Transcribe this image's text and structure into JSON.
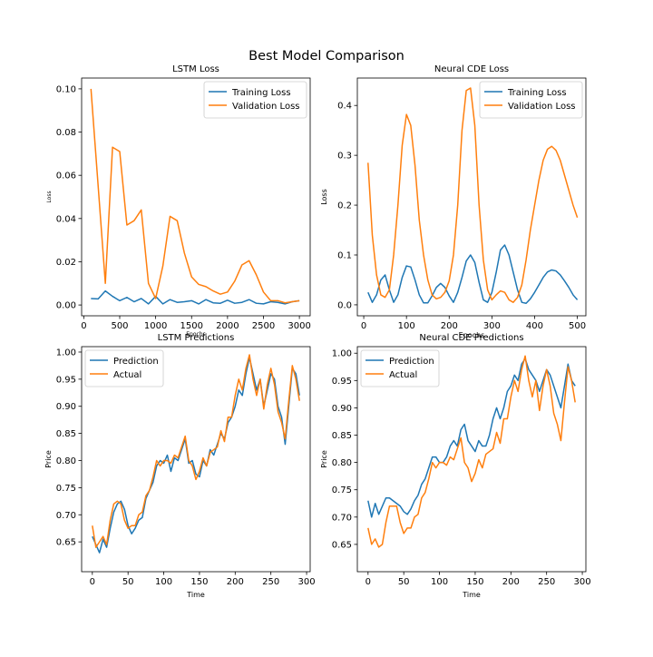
{
  "figure": {
    "title": "Best Model Comparison"
  },
  "chart_data": [
    {
      "type": "line",
      "title": "LSTM Loss",
      "xlabel": "Epochs",
      "ylabel": "Loss",
      "xlim": [
        -30,
        3150
      ],
      "ylim": [
        -0.005,
        0.105
      ],
      "xticks": [
        0,
        500,
        1000,
        1500,
        2000,
        2500,
        3000
      ],
      "yticks": [
        0.0,
        0.02,
        0.04,
        0.06,
        0.08,
        0.1
      ],
      "ytick_labels": [
        "0.00",
        "0.02",
        "0.04",
        "0.06",
        "0.08",
        "0.10"
      ],
      "legend": "top-right",
      "x": [
        100,
        200,
        300,
        400,
        500,
        600,
        700,
        800,
        900,
        1000,
        1100,
        1200,
        1300,
        1400,
        1500,
        1600,
        1700,
        1800,
        1900,
        2000,
        2100,
        2200,
        2300,
        2400,
        2500,
        2600,
        2700,
        2800,
        2900,
        3000
      ],
      "series": [
        {
          "name": "Training Loss",
          "color": "#1f77b4",
          "values": [
            0.003,
            0.0028,
            0.0065,
            0.004,
            0.002,
            0.0035,
            0.0015,
            0.003,
            0.0005,
            0.004,
            0.0005,
            0.0025,
            0.0012,
            0.0015,
            0.002,
            0.0005,
            0.0025,
            0.001,
            0.0008,
            0.0022,
            0.0008,
            0.0012,
            0.0025,
            0.0008,
            0.0005,
            0.0015,
            0.0012,
            0.0005,
            0.0015,
            0.002
          ]
        },
        {
          "name": "Validation Loss",
          "color": "#ff7f0e",
          "values": [
            0.1,
            0.055,
            0.01,
            0.073,
            0.071,
            0.037,
            0.039,
            0.044,
            0.01,
            0.003,
            0.018,
            0.041,
            0.039,
            0.024,
            0.013,
            0.0095,
            0.0085,
            0.0065,
            0.005,
            0.006,
            0.011,
            0.0185,
            0.0205,
            0.014,
            0.006,
            0.002,
            0.002,
            0.001,
            0.0015,
            0.002
          ]
        }
      ]
    },
    {
      "type": "line",
      "title": "Neural CDE Loss",
      "xlabel": "Epochs",
      "ylabel": "Loss",
      "xlim": [
        -15,
        520
      ],
      "ylim": [
        -0.022,
        0.455
      ],
      "xticks": [
        0,
        100,
        200,
        300,
        400,
        500
      ],
      "yticks": [
        0.0,
        0.1,
        0.2,
        0.3,
        0.4
      ],
      "ytick_labels": [
        "0.0",
        "0.1",
        "0.2",
        "0.3",
        "0.4"
      ],
      "legend": "top-right",
      "x": [
        10,
        20,
        30,
        40,
        50,
        60,
        70,
        80,
        90,
        100,
        110,
        120,
        130,
        140,
        150,
        160,
        170,
        180,
        190,
        200,
        210,
        220,
        230,
        240,
        250,
        260,
        270,
        280,
        290,
        300,
        310,
        320,
        330,
        340,
        350,
        360,
        370,
        380,
        390,
        400,
        410,
        420,
        430,
        440,
        450,
        460,
        470,
        480,
        490,
        500
      ],
      "series": [
        {
          "name": "Training Loss",
          "color": "#1f77b4",
          "values": [
            0.025,
            0.005,
            0.02,
            0.05,
            0.06,
            0.03,
            0.005,
            0.02,
            0.055,
            0.078,
            0.076,
            0.05,
            0.02,
            0.004,
            0.004,
            0.018,
            0.035,
            0.043,
            0.035,
            0.018,
            0.005,
            0.025,
            0.055,
            0.088,
            0.1,
            0.085,
            0.045,
            0.01,
            0.005,
            0.025,
            0.065,
            0.11,
            0.12,
            0.1,
            0.065,
            0.03,
            0.005,
            0.003,
            0.012,
            0.025,
            0.04,
            0.055,
            0.066,
            0.07,
            0.068,
            0.06,
            0.048,
            0.035,
            0.02,
            0.01
          ]
        },
        {
          "name": "Validation Loss",
          "color": "#ff7f0e",
          "values": [
            0.285,
            0.14,
            0.06,
            0.02,
            0.015,
            0.03,
            0.1,
            0.2,
            0.32,
            0.382,
            0.36,
            0.28,
            0.17,
            0.1,
            0.05,
            0.02,
            0.012,
            0.015,
            0.025,
            0.048,
            0.1,
            0.2,
            0.35,
            0.43,
            0.435,
            0.36,
            0.2,
            0.09,
            0.03,
            0.01,
            0.02,
            0.028,
            0.025,
            0.01,
            0.005,
            0.015,
            0.04,
            0.09,
            0.15,
            0.2,
            0.25,
            0.29,
            0.312,
            0.318,
            0.31,
            0.29,
            0.26,
            0.23,
            0.2,
            0.175
          ]
        }
      ]
    },
    {
      "type": "line",
      "title": "LSTM Predictions",
      "xlabel": "Time",
      "ylabel": "Price",
      "xlim": [
        -15,
        305
      ],
      "ylim": [
        0.595,
        1.01
      ],
      "xticks": [
        0,
        50,
        100,
        150,
        200,
        250,
        300
      ],
      "yticks": [
        0.65,
        0.7,
        0.75,
        0.8,
        0.85,
        0.9,
        0.95,
        1.0
      ],
      "ytick_labels": [
        "0.65",
        "0.70",
        "0.75",
        "0.80",
        "0.85",
        "0.90",
        "0.95",
        "1.00"
      ],
      "legend": "top-left",
      "x": [
        0,
        5,
        10,
        15,
        20,
        25,
        30,
        35,
        40,
        45,
        50,
        55,
        60,
        65,
        70,
        75,
        80,
        85,
        90,
        95,
        100,
        105,
        110,
        115,
        120,
        125,
        130,
        135,
        140,
        145,
        150,
        155,
        160,
        165,
        170,
        175,
        180,
        185,
        190,
        195,
        200,
        205,
        210,
        215,
        220,
        225,
        230,
        235,
        240,
        245,
        250,
        255,
        260,
        265,
        270,
        275,
        280,
        285,
        290
      ],
      "series": [
        {
          "name": "Prediction",
          "color": "#1f77b4",
          "values": [
            0.66,
            0.645,
            0.63,
            0.655,
            0.64,
            0.675,
            0.705,
            0.72,
            0.725,
            0.71,
            0.68,
            0.665,
            0.675,
            0.69,
            0.695,
            0.73,
            0.745,
            0.76,
            0.79,
            0.8,
            0.795,
            0.81,
            0.78,
            0.805,
            0.8,
            0.82,
            0.84,
            0.795,
            0.8,
            0.775,
            0.77,
            0.8,
            0.79,
            0.82,
            0.81,
            0.83,
            0.85,
            0.84,
            0.87,
            0.88,
            0.9,
            0.93,
            0.92,
            0.96,
            0.99,
            0.96,
            0.93,
            0.95,
            0.9,
            0.93,
            0.96,
            0.95,
            0.9,
            0.88,
            0.83,
            0.9,
            0.97,
            0.96,
            0.92
          ]
        },
        {
          "name": "Actual",
          "color": "#ff7f0e",
          "values": [
            0.68,
            0.64,
            0.65,
            0.66,
            0.645,
            0.69,
            0.72,
            0.725,
            0.72,
            0.69,
            0.675,
            0.68,
            0.68,
            0.7,
            0.705,
            0.735,
            0.745,
            0.77,
            0.8,
            0.79,
            0.8,
            0.8,
            0.795,
            0.81,
            0.805,
            0.825,
            0.845,
            0.8,
            0.79,
            0.765,
            0.78,
            0.805,
            0.79,
            0.815,
            0.82,
            0.825,
            0.855,
            0.835,
            0.88,
            0.88,
            0.92,
            0.95,
            0.93,
            0.97,
            0.995,
            0.95,
            0.92,
            0.95,
            0.895,
            0.94,
            0.97,
            0.94,
            0.89,
            0.87,
            0.84,
            0.91,
            0.975,
            0.95,
            0.91
          ]
        }
      ]
    },
    {
      "type": "line",
      "title": "Neural CDE Predictions",
      "xlabel": "Time",
      "ylabel": "Price",
      "xlim": [
        -15,
        305
      ],
      "ylim": [
        0.6,
        1.012
      ],
      "xticks": [
        0,
        50,
        100,
        150,
        200,
        250,
        300
      ],
      "yticks": [
        0.65,
        0.7,
        0.75,
        0.8,
        0.85,
        0.9,
        0.95,
        1.0
      ],
      "ytick_labels": [
        "0.65",
        "0.70",
        "0.75",
        "0.80",
        "0.85",
        "0.90",
        "0.95",
        "1.00"
      ],
      "legend": "top-left",
      "x": [
        0,
        5,
        10,
        15,
        20,
        25,
        30,
        35,
        40,
        45,
        50,
        55,
        60,
        65,
        70,
        75,
        80,
        85,
        90,
        95,
        100,
        105,
        110,
        115,
        120,
        125,
        130,
        135,
        140,
        145,
        150,
        155,
        160,
        165,
        170,
        175,
        180,
        185,
        190,
        195,
        200,
        205,
        210,
        215,
        220,
        225,
        230,
        235,
        240,
        245,
        250,
        255,
        260,
        265,
        270,
        275,
        280,
        285,
        290
      ],
      "series": [
        {
          "name": "Prediction",
          "color": "#1f77b4",
          "values": [
            0.73,
            0.7,
            0.725,
            0.705,
            0.72,
            0.735,
            0.735,
            0.73,
            0.725,
            0.72,
            0.71,
            0.705,
            0.715,
            0.73,
            0.74,
            0.76,
            0.77,
            0.79,
            0.81,
            0.81,
            0.8,
            0.8,
            0.81,
            0.83,
            0.84,
            0.83,
            0.86,
            0.87,
            0.84,
            0.83,
            0.82,
            0.84,
            0.83,
            0.83,
            0.85,
            0.88,
            0.9,
            0.88,
            0.9,
            0.93,
            0.94,
            0.96,
            0.95,
            0.98,
            0.99,
            0.97,
            0.96,
            0.95,
            0.93,
            0.95,
            0.97,
            0.96,
            0.94,
            0.92,
            0.9,
            0.94,
            0.98,
            0.95,
            0.94
          ]
        },
        {
          "name": "Actual",
          "color": "#ff7f0e",
          "values": [
            0.68,
            0.65,
            0.66,
            0.645,
            0.65,
            0.69,
            0.72,
            0.72,
            0.72,
            0.69,
            0.67,
            0.68,
            0.68,
            0.7,
            0.705,
            0.735,
            0.745,
            0.77,
            0.8,
            0.79,
            0.8,
            0.8,
            0.795,
            0.81,
            0.805,
            0.825,
            0.845,
            0.8,
            0.79,
            0.765,
            0.78,
            0.805,
            0.79,
            0.815,
            0.82,
            0.825,
            0.855,
            0.835,
            0.88,
            0.88,
            0.92,
            0.95,
            0.93,
            0.97,
            0.995,
            0.95,
            0.92,
            0.95,
            0.895,
            0.94,
            0.97,
            0.94,
            0.89,
            0.87,
            0.84,
            0.91,
            0.975,
            0.95,
            0.91
          ]
        }
      ]
    }
  ]
}
